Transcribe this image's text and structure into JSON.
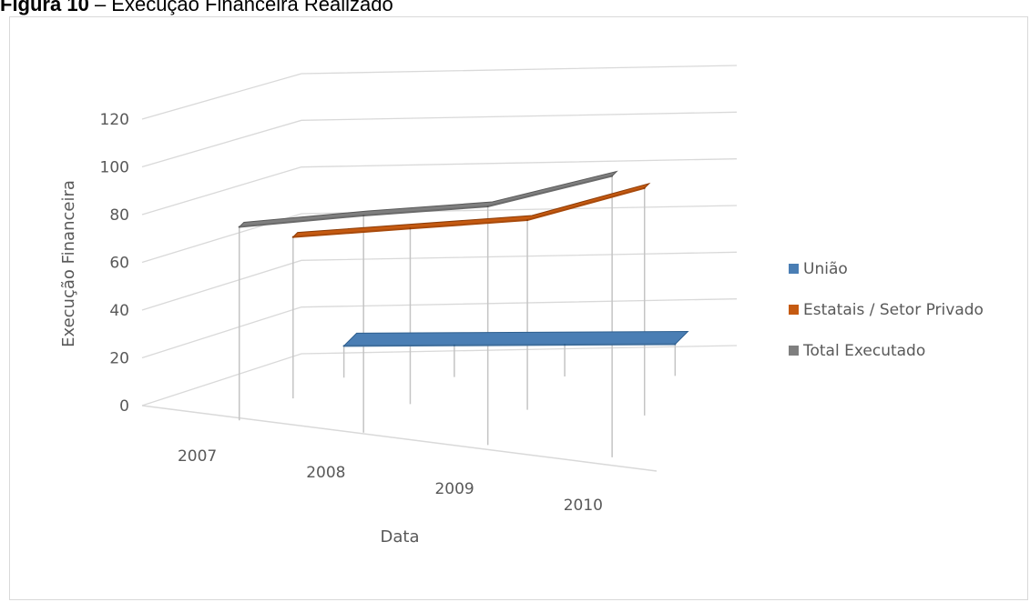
{
  "caption": {
    "prefix": "Figura 10",
    "title": "– Execução Financeira Realizado"
  },
  "chart_data": {
    "type": "line",
    "view": "3d",
    "categories": [
      "2007",
      "2008",
      "2009",
      "2010"
    ],
    "series": [
      {
        "name": "União",
        "values": [
          5,
          5,
          5,
          5
        ],
        "color": "#4a7eb4"
      },
      {
        "name": "Estatais / Setor Privado",
        "values": [
          60,
          66,
          72,
          88
        ],
        "color": "#c55a11"
      },
      {
        "name": "Total Executado",
        "values": [
          73,
          83,
          92,
          110
        ],
        "color": "#7f7f7f"
      }
    ],
    "xlabel": "Data",
    "ylabel": "Execução Financeira",
    "yticks": [
      "0",
      "20",
      "40",
      "60",
      "80",
      "100",
      "120"
    ],
    "ylim": [
      0,
      120
    ],
    "grid": true,
    "legend_position": "right"
  }
}
